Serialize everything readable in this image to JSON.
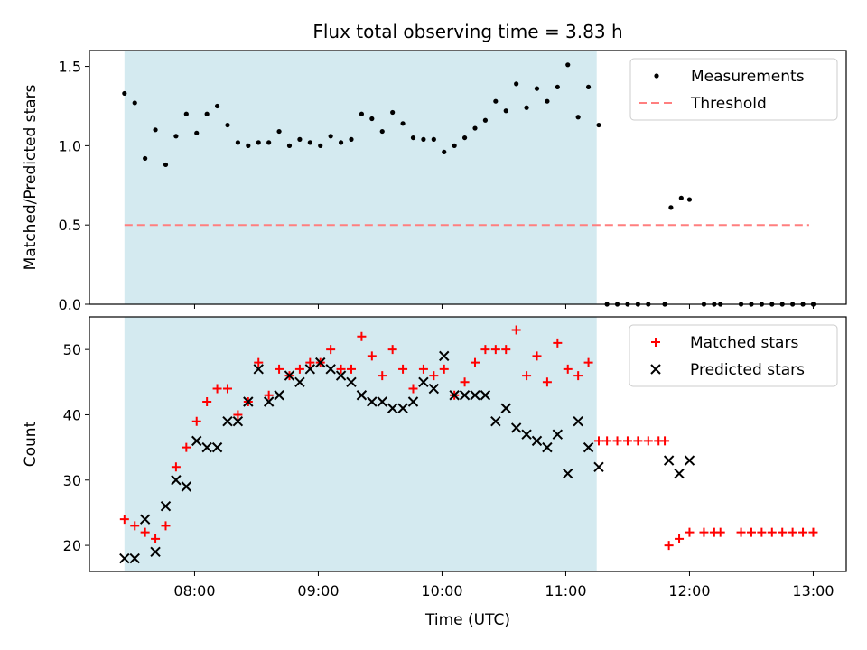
{
  "chart_data": [
    {
      "type": "scatter",
      "title": "Flux total observing time = 3.83 h",
      "ylabel": "Matched/Predicted stars",
      "xlabel": "",
      "ylim": [
        0,
        1.6
      ],
      "yticks": [
        "0.0",
        "0.5",
        "1.0",
        "1.5"
      ],
      "shaded_region": {
        "x_start": "07:26",
        "x_end": "11:15",
        "color": "#d4eaf0"
      },
      "legend": {
        "placement": "upper right",
        "entries": [
          "Measurements",
          "Threshold"
        ]
      },
      "series": [
        {
          "name": "Measurements",
          "marker": "dot",
          "color": "#000000",
          "points": [
            [
              "07:26",
              1.33
            ],
            [
              "07:31",
              1.27
            ],
            [
              "07:36",
              0.92
            ],
            [
              "07:41",
              1.1
            ],
            [
              "07:46",
              0.88
            ],
            [
              "07:51",
              1.06
            ],
            [
              "07:56",
              1.2
            ],
            [
              "08:01",
              1.08
            ],
            [
              "08:06",
              1.2
            ],
            [
              "08:11",
              1.25
            ],
            [
              "08:16",
              1.13
            ],
            [
              "08:21",
              1.02
            ],
            [
              "08:26",
              1.0
            ],
            [
              "08:31",
              1.02
            ],
            [
              "08:36",
              1.02
            ],
            [
              "08:41",
              1.09
            ],
            [
              "08:46",
              1.0
            ],
            [
              "08:51",
              1.04
            ],
            [
              "08:56",
              1.02
            ],
            [
              "09:01",
              1.0
            ],
            [
              "09:06",
              1.06
            ],
            [
              "09:11",
              1.02
            ],
            [
              "09:16",
              1.04
            ],
            [
              "09:21",
              1.2
            ],
            [
              "09:26",
              1.17
            ],
            [
              "09:31",
              1.09
            ],
            [
              "09:36",
              1.21
            ],
            [
              "09:41",
              1.14
            ],
            [
              "09:46",
              1.05
            ],
            [
              "09:51",
              1.04
            ],
            [
              "09:56",
              1.04
            ],
            [
              "10:01",
              0.96
            ],
            [
              "10:06",
              1.0
            ],
            [
              "10:11",
              1.05
            ],
            [
              "10:16",
              1.11
            ],
            [
              "10:21",
              1.16
            ],
            [
              "10:26",
              1.28
            ],
            [
              "10:31",
              1.22
            ],
            [
              "10:36",
              1.39
            ],
            [
              "10:41",
              1.24
            ],
            [
              "10:46",
              1.36
            ],
            [
              "10:51",
              1.28
            ],
            [
              "10:56",
              1.37
            ],
            [
              "11:01",
              1.51
            ],
            [
              "11:06",
              1.18
            ],
            [
              "11:11",
              1.37
            ],
            [
              "11:16",
              1.13
            ],
            [
              "11:20",
              0
            ],
            [
              "11:25",
              0
            ],
            [
              "11:30",
              0
            ],
            [
              "11:35",
              0
            ],
            [
              "11:40",
              0
            ],
            [
              "11:48",
              0
            ],
            [
              "11:51",
              0.61
            ],
            [
              "11:56",
              0.67
            ],
            [
              "12:00",
              0.66
            ],
            [
              "12:07",
              0
            ],
            [
              "12:12",
              0
            ],
            [
              "12:15",
              0
            ],
            [
              "12:25",
              0
            ],
            [
              "12:30",
              0
            ],
            [
              "12:35",
              0
            ],
            [
              "12:40",
              0
            ],
            [
              "12:45",
              0
            ],
            [
              "12:50",
              0
            ],
            [
              "12:55",
              0
            ],
            [
              "13:00",
              0
            ]
          ]
        },
        {
          "name": "Threshold",
          "style": "dashed",
          "color": "#ff7f7f",
          "points": [
            [
              "07:26",
              0.5
            ],
            [
              "12:58",
              0.5
            ]
          ]
        }
      ]
    },
    {
      "type": "scatter",
      "title": "",
      "ylabel": "Count",
      "xlabel": "Time (UTC)",
      "ylim": [
        16,
        55
      ],
      "yticks": [
        "20",
        "30",
        "40",
        "50"
      ],
      "xticks": [
        "08:00",
        "09:00",
        "10:00",
        "11:00",
        "12:00",
        "13:00"
      ],
      "xlim": [
        "07:09",
        "13:16"
      ],
      "shaded_region": {
        "x_start": "07:26",
        "x_end": "11:15",
        "color": "#d4eaf0"
      },
      "legend": {
        "placement": "upper right",
        "entries": [
          "Matched stars",
          "Predicted stars"
        ]
      },
      "series": [
        {
          "name": "Matched stars",
          "marker": "plus",
          "color": "#ff0000",
          "points": [
            [
              "07:26",
              24
            ],
            [
              "07:31",
              23
            ],
            [
              "07:36",
              22
            ],
            [
              "07:41",
              21
            ],
            [
              "07:46",
              23
            ],
            [
              "07:51",
              32
            ],
            [
              "07:56",
              35
            ],
            [
              "08:01",
              39
            ],
            [
              "08:06",
              42
            ],
            [
              "08:11",
              44
            ],
            [
              "08:16",
              44
            ],
            [
              "08:21",
              40
            ],
            [
              "08:26",
              42
            ],
            [
              "08:31",
              48
            ],
            [
              "08:36",
              43
            ],
            [
              "08:41",
              47
            ],
            [
              "08:46",
              46
            ],
            [
              "08:51",
              47
            ],
            [
              "08:56",
              48
            ],
            [
              "09:01",
              48
            ],
            [
              "09:06",
              50
            ],
            [
              "09:11",
              47
            ],
            [
              "09:16",
              47
            ],
            [
              "09:21",
              52
            ],
            [
              "09:26",
              49
            ],
            [
              "09:31",
              46
            ],
            [
              "09:36",
              50
            ],
            [
              "09:41",
              47
            ],
            [
              "09:46",
              44
            ],
            [
              "09:51",
              47
            ],
            [
              "09:56",
              46
            ],
            [
              "10:01",
              47
            ],
            [
              "10:06",
              43
            ],
            [
              "10:11",
              45
            ],
            [
              "10:16",
              48
            ],
            [
              "10:21",
              50
            ],
            [
              "10:26",
              50
            ],
            [
              "10:31",
              50
            ],
            [
              "10:36",
              53
            ],
            [
              "10:41",
              46
            ],
            [
              "10:46",
              49
            ],
            [
              "10:51",
              45
            ],
            [
              "10:56",
              51
            ],
            [
              "11:01",
              47
            ],
            [
              "11:06",
              46
            ],
            [
              "11:11",
              48
            ],
            [
              "11:16",
              36
            ],
            [
              "11:20",
              36
            ],
            [
              "11:25",
              36
            ],
            [
              "11:30",
              36
            ],
            [
              "11:35",
              36
            ],
            [
              "11:40",
              36
            ],
            [
              "11:45",
              36
            ],
            [
              "11:48",
              36
            ],
            [
              "11:50",
              20
            ],
            [
              "11:55",
              21
            ],
            [
              "12:00",
              22
            ],
            [
              "12:07",
              22
            ],
            [
              "12:12",
              22
            ],
            [
              "12:15",
              22
            ],
            [
              "12:25",
              22
            ],
            [
              "12:30",
              22
            ],
            [
              "12:35",
              22
            ],
            [
              "12:40",
              22
            ],
            [
              "12:45",
              22
            ],
            [
              "12:50",
              22
            ],
            [
              "12:55",
              22
            ],
            [
              "13:00",
              22
            ]
          ]
        },
        {
          "name": "Predicted stars",
          "marker": "x",
          "color": "#000000",
          "points": [
            [
              "07:26",
              18
            ],
            [
              "07:31",
              18
            ],
            [
              "07:36",
              24
            ],
            [
              "07:41",
              19
            ],
            [
              "07:46",
              26
            ],
            [
              "07:51",
              30
            ],
            [
              "07:56",
              29
            ],
            [
              "08:01",
              36
            ],
            [
              "08:06",
              35
            ],
            [
              "08:11",
              35
            ],
            [
              "08:16",
              39
            ],
            [
              "08:21",
              39
            ],
            [
              "08:26",
              42
            ],
            [
              "08:31",
              47
            ],
            [
              "08:36",
              42
            ],
            [
              "08:41",
              43
            ],
            [
              "08:46",
              46
            ],
            [
              "08:51",
              45
            ],
            [
              "08:56",
              47
            ],
            [
              "09:01",
              48
            ],
            [
              "09:06",
              47
            ],
            [
              "09:11",
              46
            ],
            [
              "09:16",
              45
            ],
            [
              "09:21",
              43
            ],
            [
              "09:26",
              42
            ],
            [
              "09:31",
              42
            ],
            [
              "09:36",
              41
            ],
            [
              "09:41",
              41
            ],
            [
              "09:46",
              42
            ],
            [
              "09:51",
              45
            ],
            [
              "09:56",
              44
            ],
            [
              "10:01",
              49
            ],
            [
              "10:06",
              43
            ],
            [
              "10:11",
              43
            ],
            [
              "10:16",
              43
            ],
            [
              "10:21",
              43
            ],
            [
              "10:26",
              39
            ],
            [
              "10:31",
              41
            ],
            [
              "10:36",
              38
            ],
            [
              "10:41",
              37
            ],
            [
              "10:46",
              36
            ],
            [
              "10:51",
              35
            ],
            [
              "10:56",
              37
            ],
            [
              "11:01",
              31
            ],
            [
              "11:06",
              39
            ],
            [
              "11:11",
              35
            ],
            [
              "11:16",
              32
            ],
            [
              "11:50",
              33
            ],
            [
              "11:55",
              31
            ],
            [
              "12:00",
              33
            ]
          ]
        }
      ]
    }
  ]
}
